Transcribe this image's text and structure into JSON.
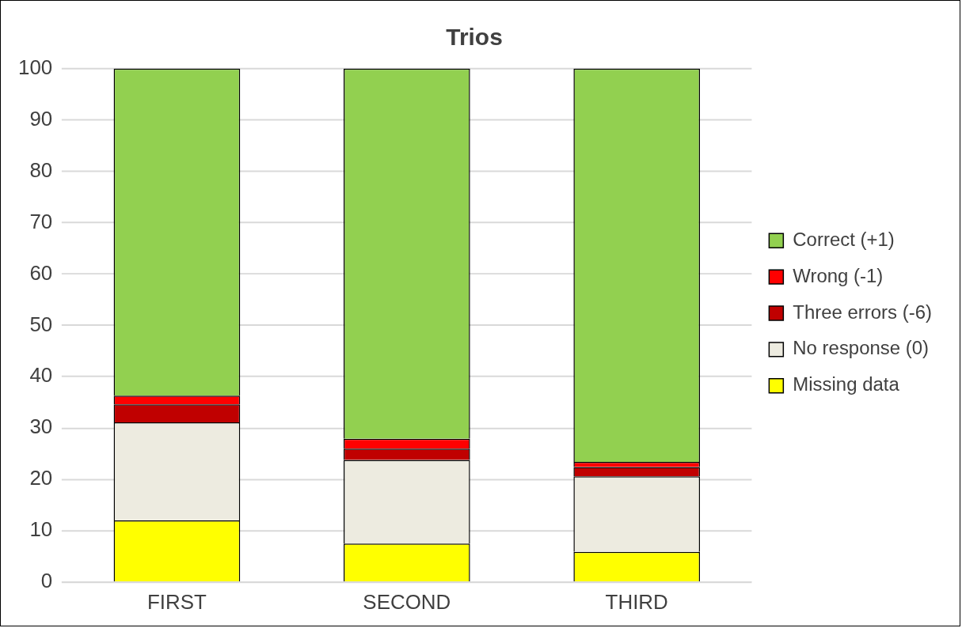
{
  "chart_data": {
    "type": "bar",
    "title": "Trios",
    "categories": [
      "FIRST",
      "SECOND",
      "THIRD"
    ],
    "stacked": true,
    "series": [
      {
        "name": "Missing data",
        "color": "#ffff00",
        "values": [
          12.0,
          7.5,
          5.9
        ]
      },
      {
        "name": "No response (0)",
        "color": "#edebe0",
        "values": [
          19.1,
          16.3,
          14.7
        ]
      },
      {
        "name": "Three errors (-6)",
        "color": "#c00000",
        "values": [
          3.5,
          2.2,
          1.8
        ]
      },
      {
        "name": "Wrong (-1)",
        "color": "#ff0000",
        "values": [
          1.7,
          1.9,
          1.0
        ]
      },
      {
        "name": "Correct (+1)",
        "color": "#92d050",
        "values": [
          63.7,
          72.1,
          76.6
        ]
      }
    ],
    "ylim": [
      0,
      100
    ],
    "yticks": [
      0,
      10,
      20,
      30,
      40,
      50,
      60,
      70,
      80,
      90,
      100
    ],
    "grid": "y",
    "legend": "right"
  }
}
